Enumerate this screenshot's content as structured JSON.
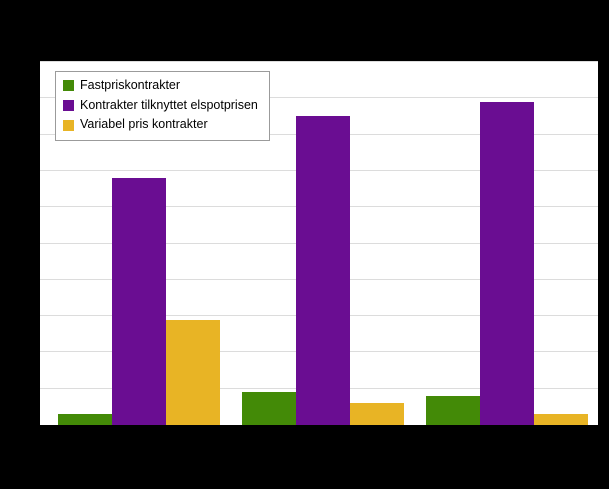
{
  "background_color": "#000000",
  "plot": {
    "background_color": "#ffffff",
    "grid_color": "#dcdcdc"
  },
  "legend": {
    "items": [
      {
        "label": "Fastpriskontrakter",
        "color": "#438a07"
      },
      {
        "label": "Kontrakter tilknyttet elspotprisen",
        "color": "#6a0d92"
      },
      {
        "label": "Variabel pris kontrakter",
        "color": "#e8b425"
      }
    ]
  },
  "chart_data": {
    "type": "bar",
    "title": "",
    "xlabel": "",
    "ylabel": "",
    "categories": [
      "",
      "",
      ""
    ],
    "series": [
      {
        "name": "Fastpriskontrakter",
        "color": "#438a07",
        "values": [
          3,
          9,
          8
        ]
      },
      {
        "name": "Kontrakter tilknyttet elspotprisen",
        "color": "#6a0d92",
        "values": [
          68,
          85,
          89
        ]
      },
      {
        "name": "Variabel pris kontrakter",
        "color": "#e8b425",
        "values": [
          29,
          6,
          3
        ]
      }
    ],
    "ylim": [
      0,
      100
    ],
    "grid": true,
    "gridline_step": 10,
    "legend_position": "top-left"
  }
}
